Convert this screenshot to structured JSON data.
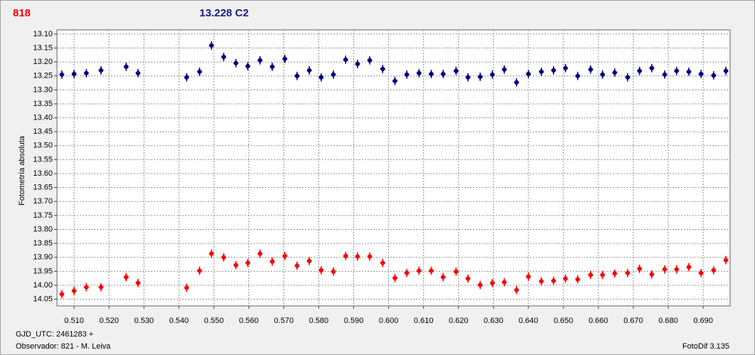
{
  "chart_data": {
    "type": "scatter",
    "y_label": "Fotometría absoluta",
    "x_label": "GJD_UTC: 2461283 +",
    "observer": "Observador: 821 - M. Leiva",
    "software": "FotoDif 3.135",
    "xlim": [
      0.5051,
      0.6977
    ],
    "ylim": [
      14.074,
      13.085
    ],
    "grid": true,
    "error": 0.015,
    "xticks": [
      {
        "value": 0.51,
        "label": "0.510"
      },
      {
        "value": 0.52,
        "label": "0.520"
      },
      {
        "value": 0.53,
        "label": "0.530"
      },
      {
        "value": 0.54,
        "label": "0.540"
      },
      {
        "value": 0.55,
        "label": "0.550"
      },
      {
        "value": 0.56,
        "label": "0.560"
      },
      {
        "value": 0.57,
        "label": "0.570"
      },
      {
        "value": 0.58,
        "label": "0.580"
      },
      {
        "value": 0.59,
        "label": "0.590"
      },
      {
        "value": 0.6,
        "label": "0.600"
      },
      {
        "value": 0.61,
        "label": "0.610"
      },
      {
        "value": 0.62,
        "label": "0.620"
      },
      {
        "value": 0.63,
        "label": "0.630"
      },
      {
        "value": 0.64,
        "label": "0.640"
      },
      {
        "value": 0.65,
        "label": "0.650"
      },
      {
        "value": 0.66,
        "label": "0.660"
      },
      {
        "value": 0.67,
        "label": "0.670"
      },
      {
        "value": 0.68,
        "label": "0.680"
      },
      {
        "value": 0.69,
        "label": "0.690"
      }
    ],
    "yticks": [
      {
        "value": 13.1,
        "label": "13.10"
      },
      13.15,
      {
        "value": 13.2,
        "label": "13.20"
      },
      13.25,
      {
        "value": 13.3,
        "label": "13.30"
      },
      13.35,
      {
        "value": 13.4,
        "label": "13.40"
      },
      13.45,
      {
        "value": 13.5,
        "label": "13.50"
      },
      13.55,
      {
        "value": 13.6,
        "label": "13.60"
      },
      13.65,
      {
        "value": 13.7,
        "label": "13.70"
      },
      13.75,
      {
        "value": 13.8,
        "label": "13.80"
      },
      13.85,
      {
        "value": 13.9,
        "label": "13.90"
      },
      13.95,
      {
        "value": 14.0,
        "label": "14.00"
      },
      14.05
    ],
    "x": [
      0.5065,
      0.51,
      0.5135,
      0.5177,
      0.5249,
      0.5283,
      0.5422,
      0.5459,
      0.5493,
      0.5528,
      0.5563,
      0.5597,
      0.5632,
      0.5667,
      0.5703,
      0.5738,
      0.5773,
      0.5807,
      0.5842,
      0.5877,
      0.5911,
      0.5946,
      0.5983,
      0.6018,
      0.6052,
      0.6087,
      0.6122,
      0.6156,
      0.6193,
      0.6227,
      0.6262,
      0.6297,
      0.6331,
      0.6366,
      0.64,
      0.6437,
      0.6472,
      0.6506,
      0.6541,
      0.6578,
      0.6612,
      0.6647,
      0.6684,
      0.6718,
      0.6753,
      0.679,
      0.6824,
      0.6859,
      0.6894,
      0.693,
      0.6965
    ],
    "series": [
      {
        "name": "818",
        "color": "#ff0000",
        "values": [
          14.032,
          14.02,
          14.007,
          14.007,
          13.971,
          13.992,
          14.009,
          13.948,
          13.887,
          13.9,
          13.928,
          13.92,
          13.887,
          13.915,
          13.895,
          13.93,
          13.913,
          13.946,
          13.951,
          13.895,
          13.897,
          13.897,
          13.92,
          13.974,
          13.956,
          13.948,
          13.948,
          13.971,
          13.951,
          13.976,
          13.999,
          13.992,
          13.989,
          14.017,
          13.969,
          13.986,
          13.984,
          13.976,
          13.979,
          13.963,
          13.963,
          13.958,
          13.956,
          13.941,
          13.961,
          13.943,
          13.943,
          13.935,
          13.956,
          13.946,
          13.91
        ]
      },
      {
        "name": "13.228 C2",
        "color": "#000080",
        "values": [
          13.245,
          13.243,
          13.24,
          13.23,
          13.217,
          13.24,
          13.255,
          13.235,
          13.141,
          13.182,
          13.204,
          13.215,
          13.194,
          13.217,
          13.189,
          13.25,
          13.23,
          13.255,
          13.245,
          13.192,
          13.207,
          13.194,
          13.225,
          13.268,
          13.245,
          13.24,
          13.243,
          13.243,
          13.232,
          13.255,
          13.253,
          13.245,
          13.227,
          13.273,
          13.243,
          13.235,
          13.23,
          13.222,
          13.25,
          13.227,
          13.245,
          13.238,
          13.255,
          13.232,
          13.222,
          13.245,
          13.232,
          13.235,
          13.243,
          13.248,
          13.232
        ]
      }
    ]
  }
}
